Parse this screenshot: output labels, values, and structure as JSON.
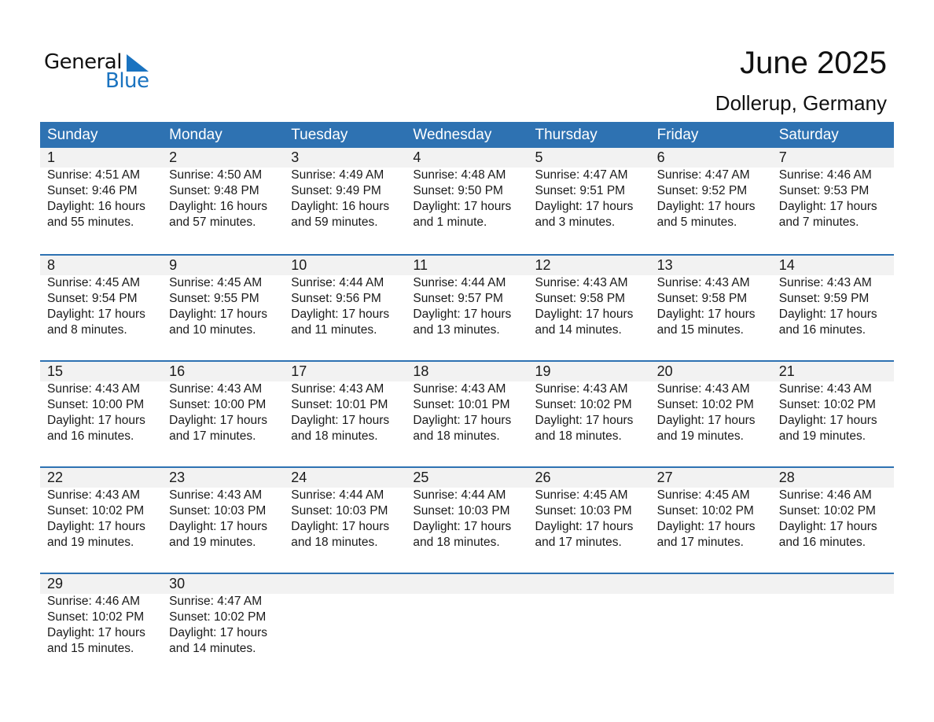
{
  "logo": {
    "general": "General",
    "blue": "Blue"
  },
  "title": "June 2025",
  "location": "Dollerup, Germany",
  "colors": {
    "header": "#2e72b2",
    "band": "#f2f2f2",
    "logo_blue": "#1a73c0"
  },
  "weekdays": [
    "Sunday",
    "Monday",
    "Tuesday",
    "Wednesday",
    "Thursday",
    "Friday",
    "Saturday"
  ],
  "weeks": [
    [
      {
        "day": "1",
        "sunrise": "Sunrise: 4:51 AM",
        "sunset": "Sunset: 9:46 PM",
        "daylight": "Daylight: 16 hours",
        "minutes": "and 55 minutes."
      },
      {
        "day": "2",
        "sunrise": "Sunrise: 4:50 AM",
        "sunset": "Sunset: 9:48 PM",
        "daylight": "Daylight: 16 hours",
        "minutes": "and 57 minutes."
      },
      {
        "day": "3",
        "sunrise": "Sunrise: 4:49 AM",
        "sunset": "Sunset: 9:49 PM",
        "daylight": "Daylight: 16 hours",
        "minutes": "and 59 minutes."
      },
      {
        "day": "4",
        "sunrise": "Sunrise: 4:48 AM",
        "sunset": "Sunset: 9:50 PM",
        "daylight": "Daylight: 17 hours",
        "minutes": "and 1 minute."
      },
      {
        "day": "5",
        "sunrise": "Sunrise: 4:47 AM",
        "sunset": "Sunset: 9:51 PM",
        "daylight": "Daylight: 17 hours",
        "minutes": "and 3 minutes."
      },
      {
        "day": "6",
        "sunrise": "Sunrise: 4:47 AM",
        "sunset": "Sunset: 9:52 PM",
        "daylight": "Daylight: 17 hours",
        "minutes": "and 5 minutes."
      },
      {
        "day": "7",
        "sunrise": "Sunrise: 4:46 AM",
        "sunset": "Sunset: 9:53 PM",
        "daylight": "Daylight: 17 hours",
        "minutes": "and 7 minutes."
      }
    ],
    [
      {
        "day": "8",
        "sunrise": "Sunrise: 4:45 AM",
        "sunset": "Sunset: 9:54 PM",
        "daylight": "Daylight: 17 hours",
        "minutes": "and 8 minutes."
      },
      {
        "day": "9",
        "sunrise": "Sunrise: 4:45 AM",
        "sunset": "Sunset: 9:55 PM",
        "daylight": "Daylight: 17 hours",
        "minutes": "and 10 minutes."
      },
      {
        "day": "10",
        "sunrise": "Sunrise: 4:44 AM",
        "sunset": "Sunset: 9:56 PM",
        "daylight": "Daylight: 17 hours",
        "minutes": "and 11 minutes."
      },
      {
        "day": "11",
        "sunrise": "Sunrise: 4:44 AM",
        "sunset": "Sunset: 9:57 PM",
        "daylight": "Daylight: 17 hours",
        "minutes": "and 13 minutes."
      },
      {
        "day": "12",
        "sunrise": "Sunrise: 4:43 AM",
        "sunset": "Sunset: 9:58 PM",
        "daylight": "Daylight: 17 hours",
        "minutes": "and 14 minutes."
      },
      {
        "day": "13",
        "sunrise": "Sunrise: 4:43 AM",
        "sunset": "Sunset: 9:58 PM",
        "daylight": "Daylight: 17 hours",
        "minutes": "and 15 minutes."
      },
      {
        "day": "14",
        "sunrise": "Sunrise: 4:43 AM",
        "sunset": "Sunset: 9:59 PM",
        "daylight": "Daylight: 17 hours",
        "minutes": "and 16 minutes."
      }
    ],
    [
      {
        "day": "15",
        "sunrise": "Sunrise: 4:43 AM",
        "sunset": "Sunset: 10:00 PM",
        "daylight": "Daylight: 17 hours",
        "minutes": "and 16 minutes."
      },
      {
        "day": "16",
        "sunrise": "Sunrise: 4:43 AM",
        "sunset": "Sunset: 10:00 PM",
        "daylight": "Daylight: 17 hours",
        "minutes": "and 17 minutes."
      },
      {
        "day": "17",
        "sunrise": "Sunrise: 4:43 AM",
        "sunset": "Sunset: 10:01 PM",
        "daylight": "Daylight: 17 hours",
        "minutes": "and 18 minutes."
      },
      {
        "day": "18",
        "sunrise": "Sunrise: 4:43 AM",
        "sunset": "Sunset: 10:01 PM",
        "daylight": "Daylight: 17 hours",
        "minutes": "and 18 minutes."
      },
      {
        "day": "19",
        "sunrise": "Sunrise: 4:43 AM",
        "sunset": "Sunset: 10:02 PM",
        "daylight": "Daylight: 17 hours",
        "minutes": "and 18 minutes."
      },
      {
        "day": "20",
        "sunrise": "Sunrise: 4:43 AM",
        "sunset": "Sunset: 10:02 PM",
        "daylight": "Daylight: 17 hours",
        "minutes": "and 19 minutes."
      },
      {
        "day": "21",
        "sunrise": "Sunrise: 4:43 AM",
        "sunset": "Sunset: 10:02 PM",
        "daylight": "Daylight: 17 hours",
        "minutes": "and 19 minutes."
      }
    ],
    [
      {
        "day": "22",
        "sunrise": "Sunrise: 4:43 AM",
        "sunset": "Sunset: 10:02 PM",
        "daylight": "Daylight: 17 hours",
        "minutes": "and 19 minutes."
      },
      {
        "day": "23",
        "sunrise": "Sunrise: 4:43 AM",
        "sunset": "Sunset: 10:03 PM",
        "daylight": "Daylight: 17 hours",
        "minutes": "and 19 minutes."
      },
      {
        "day": "24",
        "sunrise": "Sunrise: 4:44 AM",
        "sunset": "Sunset: 10:03 PM",
        "daylight": "Daylight: 17 hours",
        "minutes": "and 18 minutes."
      },
      {
        "day": "25",
        "sunrise": "Sunrise: 4:44 AM",
        "sunset": "Sunset: 10:03 PM",
        "daylight": "Daylight: 17 hours",
        "minutes": "and 18 minutes."
      },
      {
        "day": "26",
        "sunrise": "Sunrise: 4:45 AM",
        "sunset": "Sunset: 10:03 PM",
        "daylight": "Daylight: 17 hours",
        "minutes": "and 17 minutes."
      },
      {
        "day": "27",
        "sunrise": "Sunrise: 4:45 AM",
        "sunset": "Sunset: 10:02 PM",
        "daylight": "Daylight: 17 hours",
        "minutes": "and 17 minutes."
      },
      {
        "day": "28",
        "sunrise": "Sunrise: 4:46 AM",
        "sunset": "Sunset: 10:02 PM",
        "daylight": "Daylight: 17 hours",
        "minutes": "and 16 minutes."
      }
    ],
    [
      {
        "day": "29",
        "sunrise": "Sunrise: 4:46 AM",
        "sunset": "Sunset: 10:02 PM",
        "daylight": "Daylight: 17 hours",
        "minutes": "and 15 minutes."
      },
      {
        "day": "30",
        "sunrise": "Sunrise: 4:47 AM",
        "sunset": "Sunset: 10:02 PM",
        "daylight": "Daylight: 17 hours",
        "minutes": "and 14 minutes."
      },
      null,
      null,
      null,
      null,
      null
    ]
  ]
}
